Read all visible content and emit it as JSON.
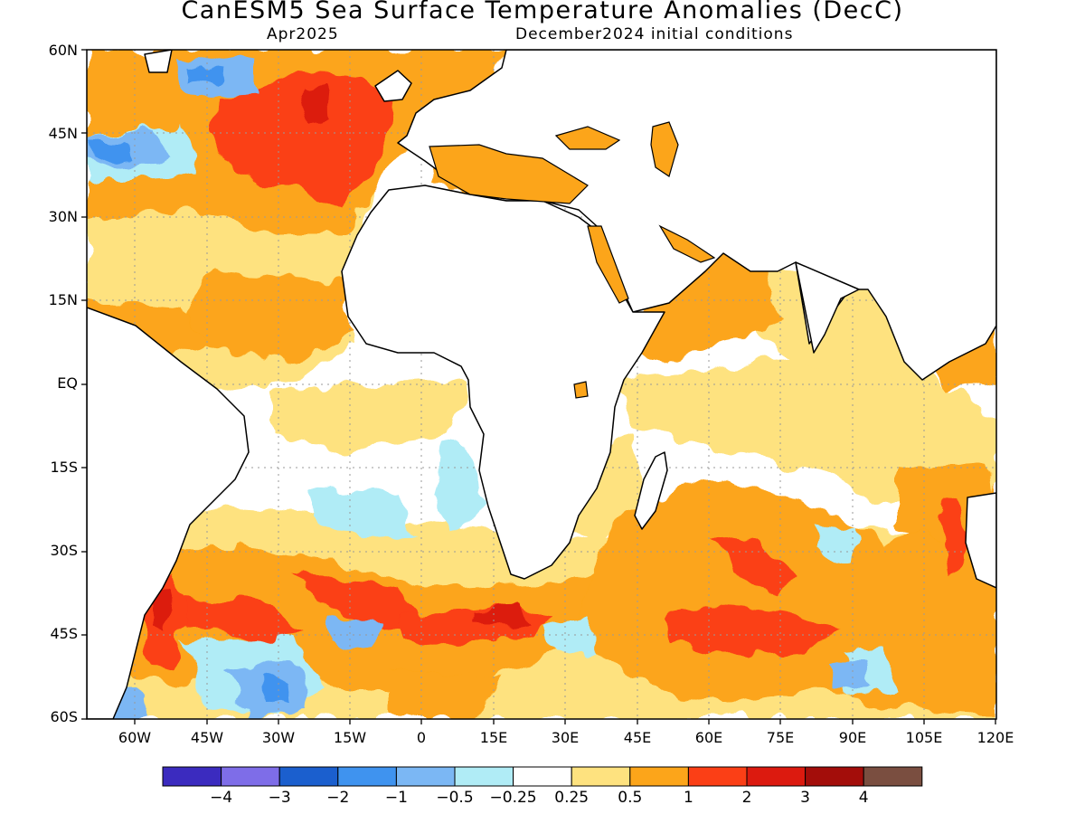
{
  "title": "CanESM5 Sea Surface Temperature Anomalies (DecC)",
  "subtitle_left": "Apr2025",
  "subtitle_right": "December2024 initial conditions",
  "lat_labels": [
    "60N",
    "45N",
    "30N",
    "15N",
    "EQ",
    "15S",
    "30S",
    "45S",
    "60S"
  ],
  "lon_labels": [
    "60W",
    "45W",
    "30W",
    "15W",
    "0",
    "15E",
    "30E",
    "45E",
    "60E",
    "75E",
    "90E",
    "105E",
    "120E"
  ],
  "colorbar": {
    "colors": [
      "#3b2bbf",
      "#7e6de8",
      "#1b5fce",
      "#3f93ef",
      "#7bb7f4",
      "#b0ecf6",
      "#ffffff",
      "#fee27f",
      "#fca51a",
      "#fb3f16",
      "#dc1a0f",
      "#a30d0a",
      "#7a4e40"
    ],
    "labels": [
      "−4",
      "−3",
      "−2",
      "−1",
      "−0.5",
      "−0.25",
      "0.25",
      "0.5",
      "1",
      "2",
      "3",
      "4"
    ]
  }
}
